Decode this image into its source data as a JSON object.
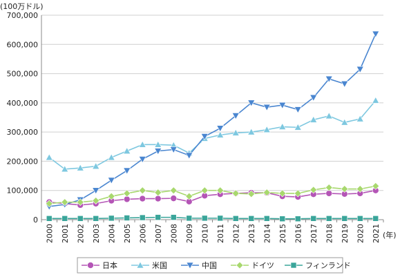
{
  "chart_data": {
    "type": "line",
    "ylabel": "(100万ドル)",
    "xlabel": "(年)",
    "ylim": [
      0,
      700000
    ],
    "y_ticks": [
      "0",
      "100,000",
      "200,000",
      "300,000",
      "400,000",
      "500,000",
      "600,000",
      "700,000"
    ],
    "y_tick_values": [
      0,
      100000,
      200000,
      300000,
      400000,
      500000,
      600000,
      700000
    ],
    "grid": "horizontal",
    "legend_position": "bottom",
    "categories": [
      "2000",
      "2001",
      "2002",
      "2003",
      "2004",
      "2005",
      "2006",
      "2007",
      "2008",
      "2009",
      "2010",
      "2011",
      "2012",
      "2013",
      "2014",
      "2015",
      "2016",
      "2017",
      "2018",
      "2019",
      "2020",
      "2021"
    ],
    "series": [
      {
        "name": "日本",
        "color": "#b455b6",
        "marker": "circle",
        "values": [
          60000,
          55000,
          50000,
          55000,
          65000,
          70000,
          72000,
          72000,
          73000,
          62000,
          82000,
          87000,
          90000,
          92000,
          92000,
          80000,
          78000,
          87000,
          90000,
          88000,
          90000,
          100000
        ]
      },
      {
        "name": "米国",
        "color": "#7ec8e0",
        "marker": "triangle-up",
        "values": [
          213000,
          173000,
          177000,
          183000,
          213000,
          235000,
          257000,
          257000,
          255000,
          228000,
          278000,
          290000,
          297000,
          300000,
          308000,
          318000,
          316000,
          342000,
          355000,
          333000,
          345000,
          408000
        ]
      },
      {
        "name": "中国",
        "color": "#4a86d0",
        "marker": "triangle-down",
        "values": [
          45000,
          52000,
          68000,
          100000,
          135000,
          168000,
          207000,
          235000,
          240000,
          220000,
          285000,
          313000,
          356000,
          400000,
          385000,
          392000,
          377000,
          418000,
          482000,
          465000,
          515000,
          636000
        ]
      },
      {
        "name": "ドイツ",
        "color": "#a8d86e",
        "marker": "diamond",
        "values": [
          55000,
          60000,
          60000,
          65000,
          80000,
          90000,
          100000,
          93000,
          100000,
          80000,
          100000,
          100000,
          90000,
          88000,
          93000,
          90000,
          90000,
          102000,
          110000,
          105000,
          105000,
          115000
        ]
      },
      {
        "name": "フィンランド",
        "color": "#3aa59a",
        "marker": "square",
        "values": [
          4000,
          4000,
          4000,
          4000,
          5000,
          6000,
          7000,
          8000,
          8000,
          5000,
          5000,
          5000,
          4000,
          4000,
          4000,
          3000,
          3000,
          4000,
          4000,
          4000,
          4000,
          4000
        ]
      }
    ]
  }
}
